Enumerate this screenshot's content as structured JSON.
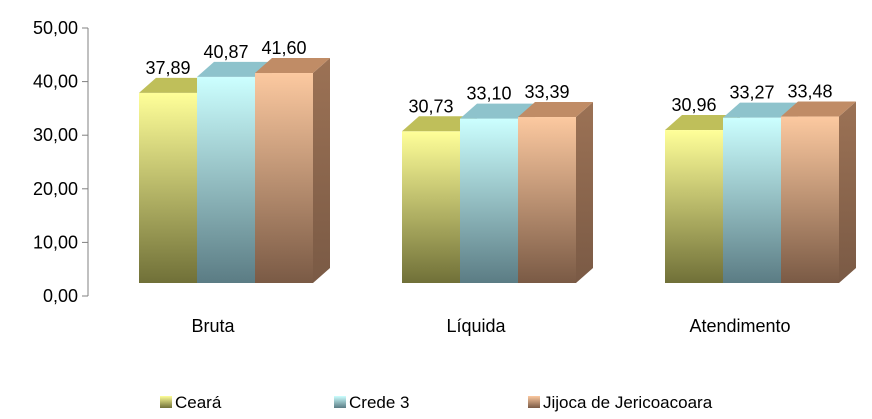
{
  "chart_data": {
    "type": "bar",
    "categories": [
      "Bruta",
      "Líquida",
      "Atendimento"
    ],
    "series": [
      {
        "name": "Ceará",
        "values": [
          37.89,
          30.73,
          30.96
        ],
        "labels": [
          "37,89",
          "30,73",
          "30,96"
        ],
        "color_light": "#ffff99",
        "color_dark": "#707038",
        "color_top": "#bfbf5a",
        "color_side": "#8f8f45"
      },
      {
        "name": "Crede 3",
        "values": [
          40.87,
          33.1,
          33.27
        ],
        "labels": [
          "40,87",
          "33,10",
          "33,27"
        ],
        "color_light": "#ccffff",
        "color_dark": "#5b7c84",
        "color_top": "#8ec3cc",
        "color_side": "#6f98a0"
      },
      {
        "name": "Jijoca de Jericoacoara",
        "values": [
          41.6,
          33.39,
          33.48
        ],
        "labels": [
          "41,60",
          "33,39",
          "33,48"
        ],
        "color_light": "#fcc9a0",
        "color_dark": "#7a5a45",
        "color_top": "#c08c66",
        "color_side": "#9c7255"
      }
    ],
    "y_ticks": [
      "0,00",
      "10,00",
      "20,00",
      "30,00",
      "40,00",
      "50,00"
    ],
    "ylim": [
      0,
      50
    ],
    "grid": false,
    "legend_position": "bottom",
    "title": "",
    "xlabel": "",
    "ylabel": ""
  }
}
